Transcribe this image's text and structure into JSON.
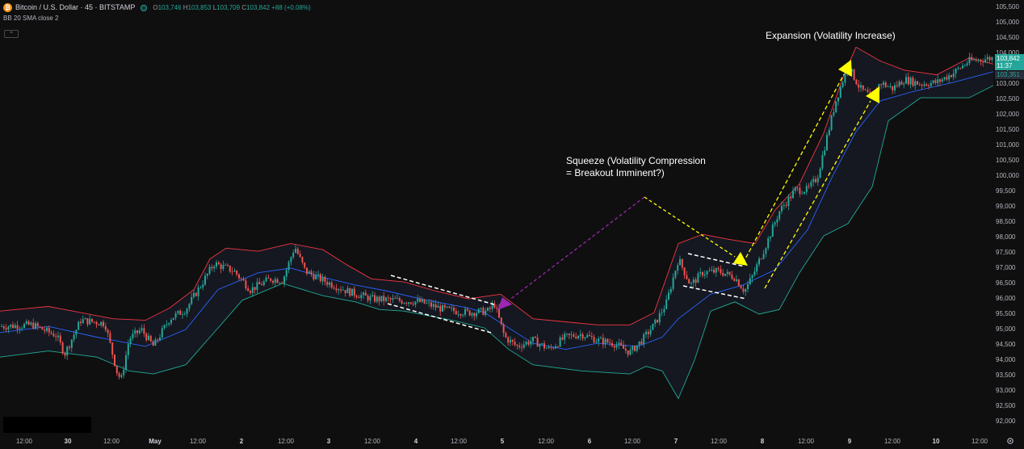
{
  "legend": {
    "logo_glyph": "₿",
    "symbol": "Bitcoin / U.S. Dollar · 45 · BITSTAMP",
    "open_label": "O",
    "open": "103,746",
    "high_label": "H",
    "high": "103,853",
    "low_label": "L",
    "low": "103,709",
    "close_label": "C",
    "close": "103,842",
    "change": "+88 (+0.08%)",
    "indicator": "BB 20 SMA close 2",
    "collapse_glyph": "⌃"
  },
  "price_axis": {
    "labels": [
      "105,500",
      "105,000",
      "104,500",
      "104,000",
      "103,500",
      "103,000",
      "102,500",
      "102,000",
      "101,500",
      "101,000",
      "100,500",
      "100,000",
      "99,500",
      "99,000",
      "98,500",
      "98,000",
      "97,500",
      "97,000",
      "96,500",
      "96,000",
      "95,500",
      "95,000",
      "94,500",
      "94,000",
      "93,500",
      "93,000",
      "92,500",
      "92,000"
    ]
  },
  "price_tags": {
    "last_price": "103,842",
    "countdown": "11:37",
    "basis": "103,351"
  },
  "time_axis": {
    "labels": [
      "12:00",
      "30",
      "12:00",
      "May",
      "12:00",
      "2",
      "12:00",
      "3",
      "12:00",
      "4",
      "12:00",
      "5",
      "12:00",
      "6",
      "12:00",
      "7",
      "12:00",
      "8",
      "12:00",
      "9",
      "12:00",
      "10",
      "12:00"
    ]
  },
  "annotations": {
    "squeeze_line1": "Squeeze (Volatility Compression",
    "squeeze_line2": "= Breakout Imminent?)",
    "expansion": "Expansion (Volatility Increase)"
  },
  "colors": {
    "up": "#26a69a",
    "down": "#ef5350",
    "upper_band": "#f23645",
    "lower_band": "#22ab94",
    "basis": "#2962ff",
    "yellow_arrow": "#ffff00",
    "purple_arrow": "#9c27b0"
  },
  "icons": {
    "settings": "gear-icon"
  },
  "chart_data": {
    "type": "candlestick",
    "symbol": "BTCUSD",
    "interval": "45",
    "y_range": [
      91900,
      105700
    ],
    "bollinger_bands": {
      "period": 20,
      "stddev": 2,
      "upper": [
        [
          0,
          95600
        ],
        [
          60,
          95750
        ],
        [
          100,
          95550
        ],
        [
          140,
          95350
        ],
        [
          180,
          95300
        ],
        [
          210,
          95700
        ],
        [
          240,
          96300
        ],
        [
          260,
          97300
        ],
        [
          280,
          97650
        ],
        [
          320,
          97550
        ],
        [
          360,
          97800
        ],
        [
          400,
          97600
        ],
        [
          430,
          97100
        ],
        [
          460,
          96650
        ],
        [
          500,
          96550
        ],
        [
          540,
          96250
        ],
        [
          580,
          96000
        ],
        [
          620,
          96150
        ],
        [
          660,
          95350
        ],
        [
          700,
          95250
        ],
        [
          740,
          95150
        ],
        [
          780,
          95150
        ],
        [
          810,
          95550
        ],
        [
          840,
          97800
        ],
        [
          870,
          98100
        ],
        [
          900,
          97950
        ],
        [
          935,
          97800
        ],
        [
          960,
          98900
        ],
        [
          990,
          99750
        ],
        [
          1020,
          101400
        ],
        [
          1045,
          103300
        ],
        [
          1060,
          104200
        ],
        [
          1090,
          103750
        ],
        [
          1120,
          103450
        ],
        [
          1160,
          103300
        ],
        [
          1200,
          103850
        ],
        [
          1230,
          103650
        ]
      ],
      "basis": [
        [
          0,
          94900
        ],
        [
          60,
          95100
        ],
        [
          120,
          94750
        ],
        [
          180,
          94450
        ],
        [
          230,
          95000
        ],
        [
          270,
          96300
        ],
        [
          320,
          96850
        ],
        [
          360,
          97000
        ],
        [
          400,
          96700
        ],
        [
          440,
          96450
        ],
        [
          480,
          96250
        ],
        [
          520,
          96000
        ],
        [
          580,
          95700
        ],
        [
          600,
          95550
        ],
        [
          630,
          95050
        ],
        [
          660,
          94550
        ],
        [
          700,
          94350
        ],
        [
          740,
          94550
        ],
        [
          790,
          94450
        ],
        [
          820,
          94750
        ],
        [
          840,
          95350
        ],
        [
          880,
          96150
        ],
        [
          920,
          96450
        ],
        [
          960,
          96950
        ],
        [
          1000,
          98250
        ],
        [
          1030,
          99950
        ],
        [
          1060,
          101450
        ],
        [
          1090,
          102450
        ],
        [
          1130,
          102750
        ],
        [
          1180,
          103050
        ],
        [
          1230,
          103400
        ]
      ],
      "lower": [
        [
          0,
          94100
        ],
        [
          60,
          94300
        ],
        [
          120,
          94100
        ],
        [
          160,
          93650
        ],
        [
          190,
          93550
        ],
        [
          230,
          93850
        ],
        [
          260,
          94750
        ],
        [
          300,
          95950
        ],
        [
          350,
          96500
        ],
        [
          400,
          96100
        ],
        [
          440,
          95900
        ],
        [
          470,
          95650
        ],
        [
          500,
          95600
        ],
        [
          560,
          95300
        ],
        [
          600,
          95050
        ],
        [
          630,
          94350
        ],
        [
          660,
          93850
        ],
        [
          720,
          93650
        ],
        [
          780,
          93550
        ],
        [
          800,
          93800
        ],
        [
          820,
          93650
        ],
        [
          840,
          92750
        ],
        [
          860,
          94000
        ],
        [
          880,
          95600
        ],
        [
          910,
          95900
        ],
        [
          940,
          95500
        ],
        [
          965,
          95650
        ],
        [
          990,
          96850
        ],
        [
          1020,
          98050
        ],
        [
          1050,
          98450
        ],
        [
          1080,
          99650
        ],
        [
          1100,
          101800
        ],
        [
          1140,
          102550
        ],
        [
          1200,
          102550
        ],
        [
          1230,
          102950
        ]
      ]
    },
    "price_path": [
      [
        0,
        95100
      ],
      [
        40,
        95150
      ],
      [
        70,
        94800
      ],
      [
        80,
        94200
      ],
      [
        100,
        95300
      ],
      [
        130,
        95200
      ],
      [
        145,
        93600
      ],
      [
        150,
        93350
      ],
      [
        160,
        94700
      ],
      [
        175,
        95000
      ],
      [
        190,
        94450
      ],
      [
        210,
        95350
      ],
      [
        230,
        95650
      ],
      [
        250,
        96500
      ],
      [
        265,
        97150
      ],
      [
        290,
        96900
      ],
      [
        310,
        96300
      ],
      [
        335,
        96650
      ],
      [
        350,
        96600
      ],
      [
        365,
        97700
      ],
      [
        378,
        96900
      ],
      [
        400,
        96600
      ],
      [
        430,
        96250
      ],
      [
        460,
        96000
      ],
      [
        490,
        95950
      ],
      [
        520,
        95900
      ],
      [
        550,
        95650
      ],
      [
        580,
        95550
      ],
      [
        605,
        95600
      ],
      [
        612,
        95850
      ],
      [
        625,
        94750
      ],
      [
        640,
        94450
      ],
      [
        660,
        94650
      ],
      [
        680,
        94350
      ],
      [
        700,
        94750
      ],
      [
        720,
        94850
      ],
      [
        740,
        94650
      ],
      [
        760,
        94550
      ],
      [
        780,
        94250
      ],
      [
        795,
        94650
      ],
      [
        810,
        95150
      ],
      [
        825,
        95850
      ],
      [
        840,
        97300
      ],
      [
        855,
        96450
      ],
      [
        870,
        96850
      ],
      [
        890,
        96900
      ],
      [
        910,
        96700
      ],
      [
        922,
        96250
      ],
      [
        932,
        96750
      ],
      [
        950,
        97850
      ],
      [
        965,
        98850
      ],
      [
        985,
        99550
      ],
      [
        1000,
        99550
      ],
      [
        1012,
        99950
      ],
      [
        1022,
        101050
      ],
      [
        1035,
        102450
      ],
      [
        1050,
        103600
      ],
      [
        1065,
        102850
      ],
      [
        1080,
        102550
      ],
      [
        1090,
        103050
      ],
      [
        1105,
        102850
      ],
      [
        1120,
        103150
      ],
      [
        1140,
        103000
      ],
      [
        1160,
        103050
      ],
      [
        1180,
        103350
      ],
      [
        1200,
        103750
      ],
      [
        1230,
        103850
      ]
    ]
  }
}
